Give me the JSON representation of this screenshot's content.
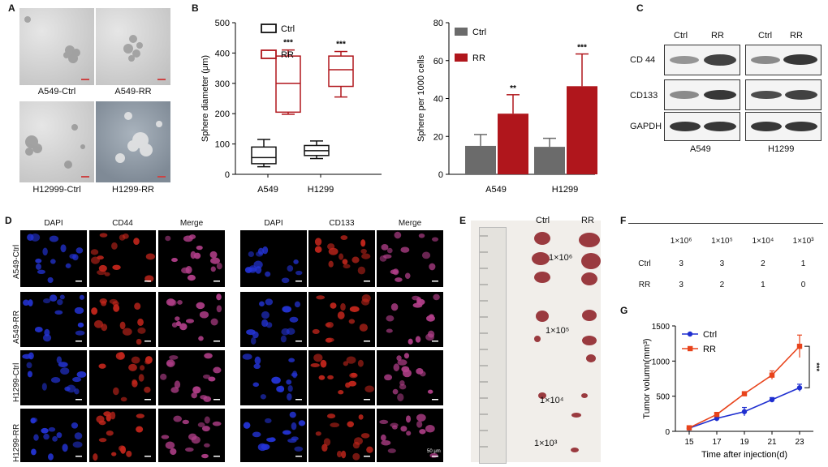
{
  "panels": {
    "A": {
      "label": "A",
      "captions": [
        "A549-Ctrl",
        "A549-RR",
        "H12999-Ctrl",
        "H1299-RR"
      ]
    },
    "B": {
      "label": "B"
    },
    "C": {
      "label": "C",
      "col_headers": [
        "Ctrl",
        "RR",
        "Ctrl",
        "RR"
      ],
      "rows": [
        "CD 44",
        "CD133",
        "GAPDH"
      ],
      "cells": [
        "A549",
        "H1299"
      ]
    },
    "D": {
      "label": "D",
      "left_headers": [
        "DAPI",
        "CD44",
        "Merge"
      ],
      "right_headers": [
        "DAPI",
        "CD133",
        "Merge"
      ],
      "rows": [
        "A549-Ctrl",
        "A549-RR",
        "H1299-Ctrl",
        "H1299-RR"
      ],
      "scale_text": "50 μm"
    },
    "E": {
      "label": "E",
      "col_headers": [
        "Ctrl",
        "RR"
      ],
      "doses": [
        "1×10⁶",
        "1×10⁵",
        "1×10⁴",
        "1×10³"
      ]
    },
    "F": {
      "label": "F",
      "headers": [
        "1×10⁶",
        "1×10⁵",
        "1×10⁴",
        "1×10³"
      ],
      "rows": [
        {
          "name": "Ctrl",
          "values": [
            "3",
            "3",
            "2",
            "1"
          ]
        },
        {
          "name": "RR",
          "values": [
            "3",
            "2",
            "1",
            "0"
          ]
        }
      ]
    },
    "G": {
      "label": "G"
    }
  },
  "chart_data": [
    {
      "id": "B-left",
      "type": "box",
      "title": "",
      "ylabel": "Sphere diameter (μm)",
      "xlabel": "",
      "ylim": [
        0,
        500
      ],
      "yticks": [
        0,
        100,
        200,
        300,
        400,
        500
      ],
      "categories": [
        "A549",
        "H1299"
      ],
      "legend": [
        {
          "name": "Ctrl",
          "color": "#111111"
        },
        {
          "name": "RR",
          "color": "#b0161c"
        }
      ],
      "series": [
        {
          "name": "Ctrl",
          "color": "#111111",
          "boxes": [
            {
              "min": 25,
              "q1": 35,
              "median": 55,
              "q3": 90,
              "max": 115
            },
            {
              "min": 52,
              "q1": 62,
              "median": 78,
              "q3": 95,
              "max": 110
            }
          ]
        },
        {
          "name": "RR",
          "color": "#b0161c",
          "boxes": [
            {
              "min": 198,
              "q1": 205,
              "median": 300,
              "q3": 390,
              "max": 410
            },
            {
              "min": 255,
              "q1": 290,
              "median": 345,
              "q3": 390,
              "max": 405
            }
          ]
        }
      ],
      "annotations": [
        "***",
        "***"
      ]
    },
    {
      "id": "B-right",
      "type": "bar",
      "title": "",
      "ylabel": "Sphere per 1000 cells",
      "xlabel": "",
      "ylim": [
        0,
        80
      ],
      "yticks": [
        0,
        20,
        40,
        60,
        80
      ],
      "categories": [
        "A549",
        "H1299"
      ],
      "legend": [
        {
          "name": "Ctrl",
          "color": "#6b6b6b"
        },
        {
          "name": "RR",
          "color": "#b0161c"
        }
      ],
      "series": [
        {
          "name": "Ctrl",
          "color": "#6b6b6b",
          "values": [
            15,
            14.5
          ],
          "errors": [
            6,
            4.5
          ]
        },
        {
          "name": "RR",
          "color": "#b0161c",
          "values": [
            32,
            46.5
          ],
          "errors": [
            10,
            17
          ]
        }
      ],
      "annotations": [
        "**",
        "***"
      ]
    },
    {
      "id": "G",
      "type": "line",
      "title": "",
      "xlabel": "Time after injection(d)",
      "ylabel": "Tumor volumn(mm³)",
      "x": [
        15,
        17,
        19,
        21,
        23
      ],
      "xticks": [
        15,
        17,
        19,
        21,
        23
      ],
      "ylim": [
        0,
        1500
      ],
      "yticks": [
        0,
        500,
        1000,
        1500
      ],
      "series": [
        {
          "name": "Ctrl",
          "color": "#1f2fd0",
          "marker": "circle",
          "values": [
            45,
            185,
            280,
            450,
            620
          ],
          "errors": [
            10,
            40,
            60,
            30,
            50
          ]
        },
        {
          "name": "RR",
          "color": "#e8431b",
          "marker": "square",
          "values": [
            50,
            240,
            535,
            800,
            1210
          ],
          "errors": [
            10,
            30,
            20,
            60,
            160
          ]
        }
      ],
      "annotations": [
        "***"
      ]
    }
  ]
}
